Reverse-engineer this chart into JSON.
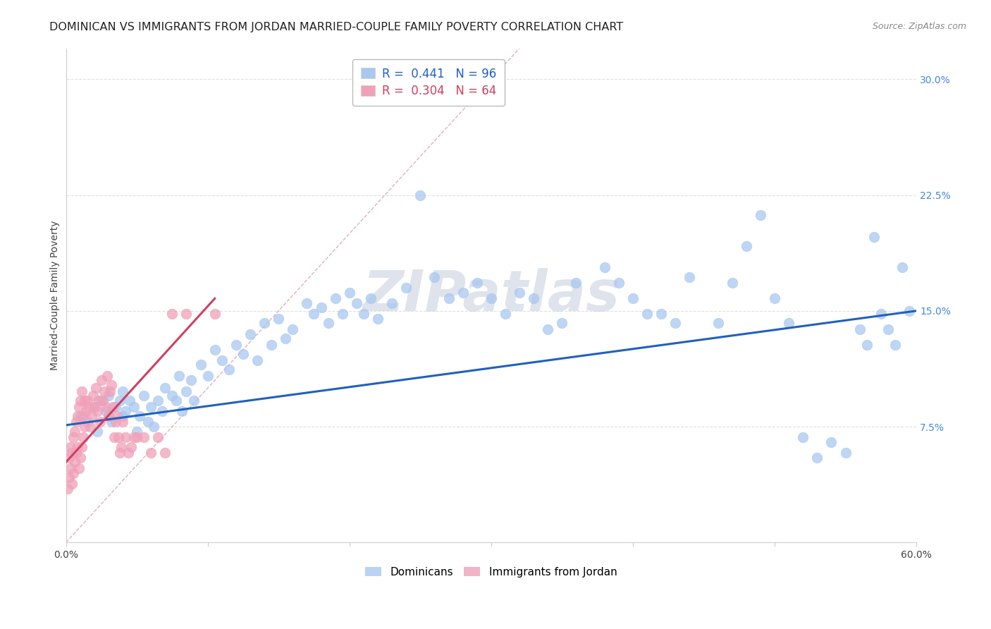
{
  "title": "DOMINICAN VS IMMIGRANTS FROM JORDAN MARRIED-COUPLE FAMILY POVERTY CORRELATION CHART",
  "source": "Source: ZipAtlas.com",
  "ylabel": "Married-Couple Family Poverty",
  "xlim": [
    0.0,
    0.6
  ],
  "ylim": [
    0.0,
    0.32
  ],
  "yticks_right": [
    0.075,
    0.15,
    0.225,
    0.3
  ],
  "ytick_right_labels": [
    "7.5%",
    "15.0%",
    "22.5%",
    "30.0%"
  ],
  "blue_R": 0.441,
  "blue_N": 96,
  "pink_R": 0.304,
  "pink_N": 64,
  "blue_color": "#a8c8f0",
  "pink_color": "#f0a0b8",
  "blue_line_color": "#2060c0",
  "pink_line_color": "#d04060",
  "diag_line_color": "#e0b0c0",
  "blue_trend_x": [
    0.0,
    0.6
  ],
  "blue_trend_y": [
    0.076,
    0.15
  ],
  "pink_trend_x": [
    0.0,
    0.105
  ],
  "pink_trend_y": [
    0.052,
    0.158
  ],
  "diag_line_x": [
    0.0,
    0.32
  ],
  "diag_line_y": [
    0.0,
    0.32
  ],
  "watermark": "ZIPatlas",
  "watermark_color": "#c0c8d8",
  "background_color": "#ffffff",
  "grid_color": "#e0e0e0",
  "blue_scatter_x": [
    0.01,
    0.015,
    0.02,
    0.022,
    0.025,
    0.028,
    0.03,
    0.03,
    0.032,
    0.035,
    0.038,
    0.04,
    0.04,
    0.042,
    0.045,
    0.048,
    0.05,
    0.052,
    0.055,
    0.058,
    0.06,
    0.062,
    0.065,
    0.068,
    0.07,
    0.075,
    0.078,
    0.08,
    0.082,
    0.085,
    0.088,
    0.09,
    0.095,
    0.1,
    0.105,
    0.11,
    0.115,
    0.12,
    0.125,
    0.13,
    0.135,
    0.14,
    0.145,
    0.15,
    0.155,
    0.16,
    0.17,
    0.175,
    0.18,
    0.185,
    0.19,
    0.195,
    0.2,
    0.205,
    0.21,
    0.215,
    0.22,
    0.23,
    0.24,
    0.25,
    0.26,
    0.27,
    0.28,
    0.29,
    0.3,
    0.31,
    0.32,
    0.33,
    0.34,
    0.35,
    0.36,
    0.38,
    0.39,
    0.4,
    0.41,
    0.42,
    0.43,
    0.44,
    0.46,
    0.47,
    0.48,
    0.49,
    0.5,
    0.51,
    0.52,
    0.53,
    0.54,
    0.55,
    0.56,
    0.565,
    0.57,
    0.575,
    0.58,
    0.585,
    0.59,
    0.595
  ],
  "blue_scatter_y": [
    0.082,
    0.078,
    0.088,
    0.072,
    0.092,
    0.085,
    0.082,
    0.095,
    0.078,
    0.088,
    0.092,
    0.082,
    0.098,
    0.085,
    0.092,
    0.088,
    0.072,
    0.082,
    0.095,
    0.078,
    0.088,
    0.075,
    0.092,
    0.085,
    0.1,
    0.095,
    0.092,
    0.108,
    0.085,
    0.098,
    0.105,
    0.092,
    0.115,
    0.108,
    0.125,
    0.118,
    0.112,
    0.128,
    0.122,
    0.135,
    0.118,
    0.142,
    0.128,
    0.145,
    0.132,
    0.138,
    0.155,
    0.148,
    0.152,
    0.142,
    0.158,
    0.148,
    0.162,
    0.155,
    0.148,
    0.158,
    0.145,
    0.155,
    0.165,
    0.225,
    0.172,
    0.158,
    0.162,
    0.168,
    0.158,
    0.148,
    0.162,
    0.158,
    0.138,
    0.142,
    0.168,
    0.178,
    0.168,
    0.158,
    0.148,
    0.148,
    0.142,
    0.172,
    0.142,
    0.168,
    0.192,
    0.212,
    0.158,
    0.142,
    0.068,
    0.055,
    0.065,
    0.058,
    0.138,
    0.128,
    0.198,
    0.148,
    0.138,
    0.128,
    0.178,
    0.15
  ],
  "pink_scatter_x": [
    0.001,
    0.002,
    0.002,
    0.003,
    0.003,
    0.004,
    0.004,
    0.005,
    0.005,
    0.006,
    0.006,
    0.007,
    0.007,
    0.008,
    0.008,
    0.009,
    0.009,
    0.01,
    0.01,
    0.011,
    0.011,
    0.012,
    0.012,
    0.013,
    0.013,
    0.014,
    0.015,
    0.016,
    0.017,
    0.018,
    0.019,
    0.02,
    0.021,
    0.022,
    0.023,
    0.024,
    0.025,
    0.026,
    0.027,
    0.028,
    0.029,
    0.03,
    0.031,
    0.032,
    0.033,
    0.034,
    0.035,
    0.036,
    0.037,
    0.038,
    0.039,
    0.04,
    0.042,
    0.044,
    0.046,
    0.048,
    0.05,
    0.055,
    0.06,
    0.065,
    0.07,
    0.075,
    0.085,
    0.105
  ],
  "pink_scatter_y": [
    0.035,
    0.042,
    0.055,
    0.048,
    0.062,
    0.038,
    0.058,
    0.045,
    0.068,
    0.052,
    0.072,
    0.058,
    0.078,
    0.062,
    0.082,
    0.048,
    0.088,
    0.055,
    0.092,
    0.062,
    0.098,
    0.068,
    0.082,
    0.075,
    0.092,
    0.085,
    0.092,
    0.088,
    0.075,
    0.082,
    0.095,
    0.088,
    0.1,
    0.085,
    0.092,
    0.078,
    0.105,
    0.092,
    0.098,
    0.088,
    0.108,
    0.082,
    0.098,
    0.102,
    0.088,
    0.068,
    0.078,
    0.082,
    0.068,
    0.058,
    0.062,
    0.078,
    0.068,
    0.058,
    0.062,
    0.068,
    0.068,
    0.068,
    0.058,
    0.068,
    0.058,
    0.148,
    0.148,
    0.148
  ],
  "legend_label_blue": "R =  0.441   N = 96",
  "legend_label_pink": "R =  0.304   N = 64",
  "bottom_legend_blue": "Dominicans",
  "bottom_legend_pink": "Immigrants from Jordan"
}
